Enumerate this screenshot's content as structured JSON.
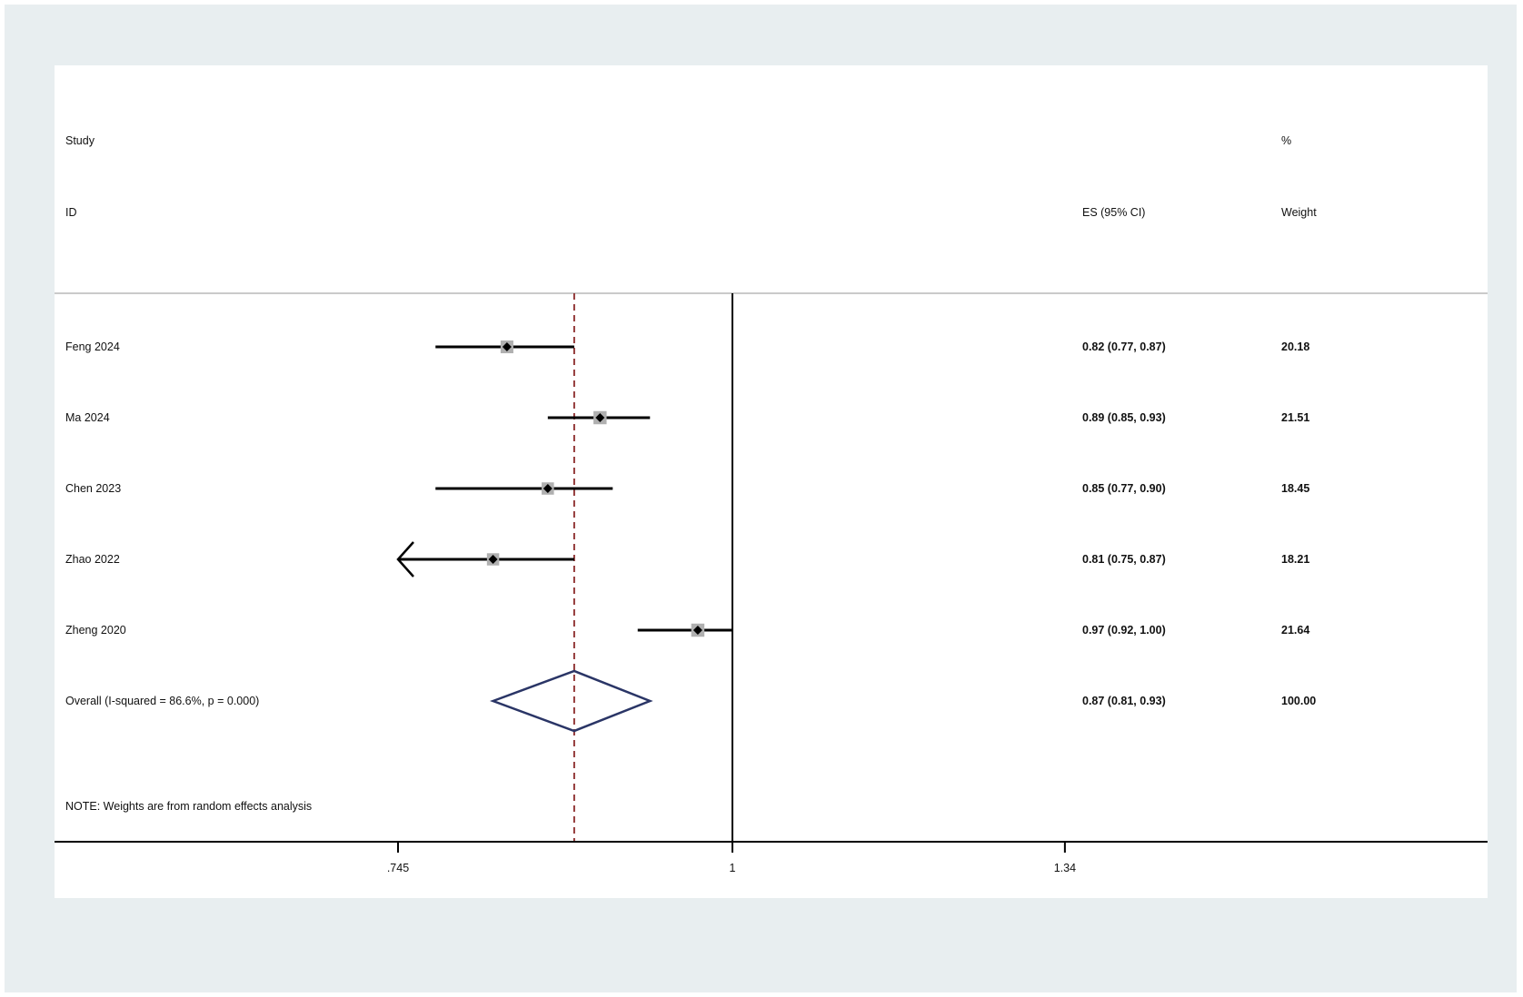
{
  "chart_data": {
    "type": "forest",
    "headers": {
      "study_line1": "Study",
      "study_line2": "ID",
      "es": "ES (95% CI)",
      "weight_line1": "%",
      "weight_line2": "Weight"
    },
    "studies": [
      {
        "name": "Feng 2024",
        "es": 0.82,
        "lo": 0.77,
        "hi": 0.87,
        "es_text": "0.82 (0.77, 0.87)",
        "weight": "20.18"
      },
      {
        "name": "Ma 2024",
        "es": 0.89,
        "lo": 0.85,
        "hi": 0.93,
        "es_text": "0.89 (0.85, 0.93)",
        "weight": "21.51"
      },
      {
        "name": "Chen 2023",
        "es": 0.85,
        "lo": 0.77,
        "hi": 0.9,
        "es_text": "0.85 (0.77, 0.90)",
        "weight": "18.45"
      },
      {
        "name": "Zhao 2022",
        "es": 0.81,
        "lo": 0.75,
        "hi": 0.87,
        "es_text": "0.81 (0.75, 0.87)",
        "weight": "18.21",
        "lower_truncated": true
      },
      {
        "name": "Zheng 2020",
        "es": 0.97,
        "lo": 0.92,
        "hi": 1.0,
        "es_text": "0.97 (0.92, 1.00)",
        "weight": "21.64"
      }
    ],
    "overall": {
      "label": "Overall  (I-squared = 86.6%, p = 0.000)",
      "es": 0.87,
      "lo": 0.81,
      "hi": 0.93,
      "es_text": "0.87 (0.81, 0.93)",
      "weight": "100.00"
    },
    "note": "NOTE: Weights are from random effects analysis",
    "x_scale": "log",
    "x_ticks": [
      0.745,
      1,
      1.34
    ],
    "x_tick_labels": [
      ".745",
      "1",
      "1.34"
    ],
    "null_line": 1,
    "colors": {
      "background": "#e8eef0",
      "diamond": "#2a3566",
      "overall_line": "#8b2a2a",
      "weight_box": "#b0b0b0",
      "ci_line": "#000000"
    }
  }
}
